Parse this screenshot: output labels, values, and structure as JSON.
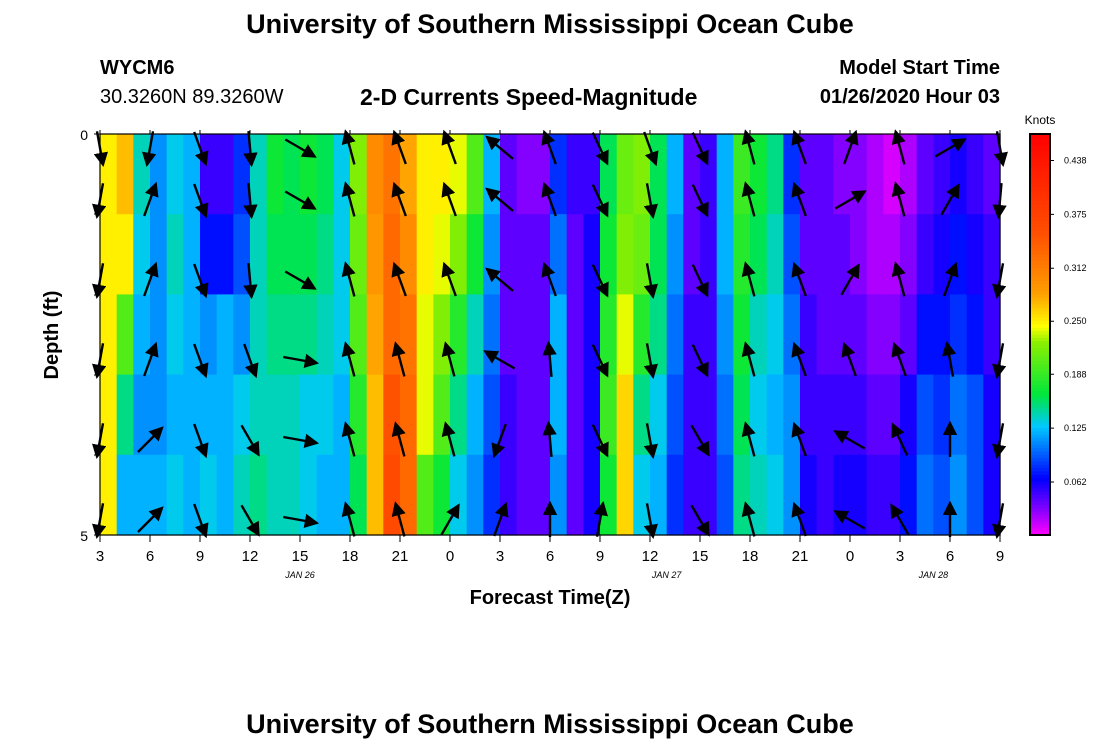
{
  "header": {
    "title": "University of Southern Mississippi Ocean Cube",
    "station_id": "WYCM6",
    "coords": "30.3260N 89.3260W",
    "product_title": "2-D Currents Speed-Magnitude",
    "model_start_label": "Model Start Time",
    "model_start_value": "01/26/2020 Hour 03",
    "footer_title": "University of Southern Mississippi Ocean Cube"
  },
  "chart_data": {
    "type": "heatmap",
    "xlabel": "Forecast Time(Z)",
    "ylabel": "Depth (ft)",
    "ylim": [
      0,
      5
    ],
    "y_ticks": [
      "0",
      "5"
    ],
    "x_ticks": [
      "3",
      "6",
      "9",
      "12",
      "15",
      "18",
      "21",
      "0",
      "3",
      "6",
      "9",
      "12",
      "15",
      "18",
      "21",
      "0",
      "3",
      "6",
      "9"
    ],
    "date_labels": [
      {
        "text": "JAN 26",
        "at_hours": 12
      },
      {
        "text": "JAN 27",
        "at_hours": 34
      },
      {
        "text": "JAN 28",
        "at_hours": 50
      }
    ],
    "x_hours_range": [
      0,
      54
    ],
    "colorbar": {
      "title": "Knots",
      "range": [
        0,
        0.469
      ],
      "ticks": [
        "0.438",
        "0.375",
        "0.312",
        "0.250",
        "0.188",
        "0.125",
        "0.062"
      ],
      "tick_values": [
        0.438,
        0.375,
        0.312,
        0.25,
        0.188,
        0.125,
        0.062
      ]
    },
    "depth_layers": 5,
    "speed_by_hour": [
      [
        0.25,
        0.25,
        0.25,
        0.25,
        0.25
      ],
      [
        0.27,
        0.25,
        0.2,
        0.15,
        0.12
      ],
      [
        0.14,
        0.13,
        0.12,
        0.11,
        0.12
      ],
      [
        0.11,
        0.11,
        0.11,
        0.11,
        0.12
      ],
      [
        0.13,
        0.14,
        0.13,
        0.12,
        0.13
      ],
      [
        0.12,
        0.12,
        0.12,
        0.12,
        0.12
      ],
      [
        0.05,
        0.07,
        0.11,
        0.12,
        0.13
      ],
      [
        0.05,
        0.07,
        0.12,
        0.12,
        0.12
      ],
      [
        0.08,
        0.09,
        0.11,
        0.13,
        0.14
      ],
      [
        0.14,
        0.14,
        0.14,
        0.14,
        0.15
      ],
      [
        0.17,
        0.16,
        0.15,
        0.14,
        0.14
      ],
      [
        0.16,
        0.16,
        0.15,
        0.14,
        0.14
      ],
      [
        0.17,
        0.16,
        0.15,
        0.13,
        0.13
      ],
      [
        0.16,
        0.15,
        0.14,
        0.13,
        0.12
      ],
      [
        0.13,
        0.13,
        0.13,
        0.12,
        0.12
      ],
      [
        0.22,
        0.21,
        0.2,
        0.18,
        0.16
      ],
      [
        0.3,
        0.29,
        0.28,
        0.27,
        0.27
      ],
      [
        0.32,
        0.33,
        0.33,
        0.35,
        0.36
      ],
      [
        0.28,
        0.3,
        0.32,
        0.33,
        0.33
      ],
      [
        0.25,
        0.25,
        0.24,
        0.24,
        0.2
      ],
      [
        0.25,
        0.24,
        0.22,
        0.2,
        0.17
      ],
      [
        0.24,
        0.22,
        0.18,
        0.15,
        0.13
      ],
      [
        0.2,
        0.17,
        0.14,
        0.12,
        0.11
      ],
      [
        0.12,
        0.11,
        0.1,
        0.09,
        0.08
      ],
      [
        0.04,
        0.04,
        0.04,
        0.05,
        0.05
      ],
      [
        0.03,
        0.04,
        0.04,
        0.04,
        0.04
      ],
      [
        0.03,
        0.04,
        0.04,
        0.04,
        0.04
      ],
      [
        0.08,
        0.1,
        0.12,
        0.12,
        0.11
      ],
      [
        0.05,
        0.04,
        0.04,
        0.04,
        0.04
      ],
      [
        0.05,
        0.06,
        0.06,
        0.06,
        0.06
      ],
      [
        0.16,
        0.17,
        0.18,
        0.19,
        0.17
      ],
      [
        0.21,
        0.22,
        0.24,
        0.26,
        0.26
      ],
      [
        0.22,
        0.21,
        0.18,
        0.15,
        0.13
      ],
      [
        0.16,
        0.16,
        0.15,
        0.13,
        0.12
      ],
      [
        0.12,
        0.11,
        0.1,
        0.09,
        0.08
      ],
      [
        0.04,
        0.04,
        0.05,
        0.05,
        0.05
      ],
      [
        0.05,
        0.05,
        0.05,
        0.05,
        0.05
      ],
      [
        0.12,
        0.12,
        0.11,
        0.1,
        0.09
      ],
      [
        0.19,
        0.18,
        0.17,
        0.16,
        0.15
      ],
      [
        0.17,
        0.16,
        0.14,
        0.13,
        0.14
      ],
      [
        0.15,
        0.14,
        0.13,
        0.12,
        0.13
      ],
      [
        0.08,
        0.09,
        0.1,
        0.11,
        0.11
      ],
      [
        0.04,
        0.04,
        0.05,
        0.05,
        0.06
      ],
      [
        0.04,
        0.04,
        0.04,
        0.05,
        0.05
      ],
      [
        0.03,
        0.04,
        0.04,
        0.05,
        0.06
      ],
      [
        0.03,
        0.03,
        0.04,
        0.05,
        0.06
      ],
      [
        0.02,
        0.02,
        0.03,
        0.04,
        0.05
      ],
      [
        0.01,
        0.02,
        0.03,
        0.04,
        0.05
      ],
      [
        0.02,
        0.03,
        0.04,
        0.06,
        0.07
      ],
      [
        0.04,
        0.05,
        0.07,
        0.09,
        0.1
      ],
      [
        0.05,
        0.06,
        0.07,
        0.08,
        0.09
      ],
      [
        0.06,
        0.07,
        0.08,
        0.1,
        0.11
      ],
      [
        0.05,
        0.06,
        0.07,
        0.09,
        0.09
      ],
      [
        0.04,
        0.05,
        0.05,
        0.06,
        0.06
      ]
    ],
    "vectors": [
      {
        "hour": 0,
        "dirs": [
          170,
          190,
          190,
          190,
          190,
          190
        ]
      },
      {
        "hour": 3,
        "dirs": [
          190,
          20,
          20,
          20,
          45,
          45
        ]
      },
      {
        "hour": 6,
        "dirs": [
          160,
          160,
          160,
          160,
          160,
          160
        ]
      },
      {
        "hour": 9,
        "dirs": [
          175,
          175,
          175,
          160,
          150,
          150
        ]
      },
      {
        "hour": 12,
        "dirs": [
          120,
          120,
          120,
          100,
          100,
          100
        ]
      },
      {
        "hour": 15,
        "dirs": [
          345,
          345,
          345,
          345,
          345,
          345
        ]
      },
      {
        "hour": 18,
        "dirs": [
          340,
          340,
          340,
          345,
          345,
          345
        ]
      },
      {
        "hour": 21,
        "dirs": [
          340,
          340,
          340,
          345,
          345,
          30
        ]
      },
      {
        "hour": 24,
        "dirs": [
          310,
          310,
          310,
          300,
          200,
          20
        ]
      },
      {
        "hour": 27,
        "dirs": [
          340,
          340,
          340,
          355,
          355,
          0
        ]
      },
      {
        "hour": 30,
        "dirs": [
          155,
          155,
          155,
          155,
          155,
          10
        ]
      },
      {
        "hour": 33,
        "dirs": [
          160,
          170,
          170,
          170,
          170,
          170
        ]
      },
      {
        "hour": 36,
        "dirs": [
          155,
          155,
          155,
          155,
          150,
          150
        ]
      },
      {
        "hour": 39,
        "dirs": [
          345,
          345,
          345,
          345,
          345,
          345
        ]
      },
      {
        "hour": 42,
        "dirs": [
          340,
          340,
          340,
          340,
          340,
          340
        ]
      },
      {
        "hour": 45,
        "dirs": [
          20,
          60,
          30,
          340,
          300,
          300
        ]
      },
      {
        "hour": 48,
        "dirs": [
          345,
          345,
          345,
          340,
          335,
          330
        ]
      },
      {
        "hour": 51,
        "dirs": [
          60,
          30,
          20,
          350,
          0,
          0
        ]
      },
      {
        "hour": 54,
        "dirs": [
          170,
          185,
          190,
          190,
          190,
          190
        ]
      }
    ]
  }
}
